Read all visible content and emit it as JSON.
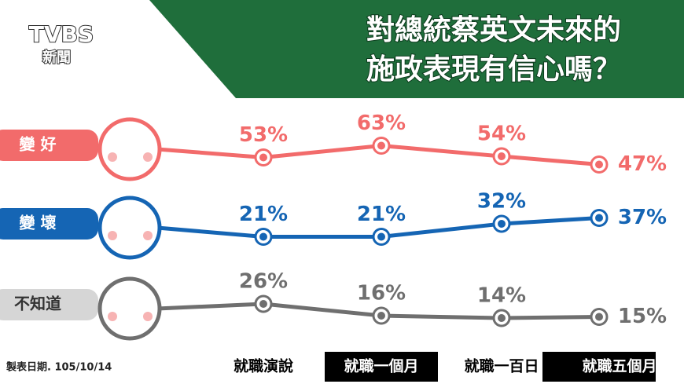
{
  "logo": "TVBS",
  "logo_sub": "新聞",
  "note": "製表日期. 105/10/14",
  "chart_data": {
    "type": "line",
    "title": [
      "對總統蔡英文未來的",
      "施政表現有信心嗎？"
    ],
    "categories": [
      "就職演說",
      "就職一個月",
      "就職一百日",
      "就職五個月"
    ],
    "series": [
      {
        "name": "變 好",
        "color": "#f26b6b",
        "values": [
          53,
          63,
          54,
          47
        ],
        "value_labels": [
          "53%",
          "63%",
          "54%",
          "47%"
        ]
      },
      {
        "name": "變 壞",
        "color": "#1565b4",
        "values": [
          21,
          21,
          32,
          37
        ],
        "value_labels": [
          "21%",
          "21%",
          "32%",
          "37%"
        ]
      },
      {
        "name": "不知道",
        "color": "#6f6f6f",
        "values": [
          26,
          16,
          14,
          15
        ],
        "value_labels": [
          "26%",
          "16%",
          "14%",
          "15%"
        ]
      }
    ]
  }
}
